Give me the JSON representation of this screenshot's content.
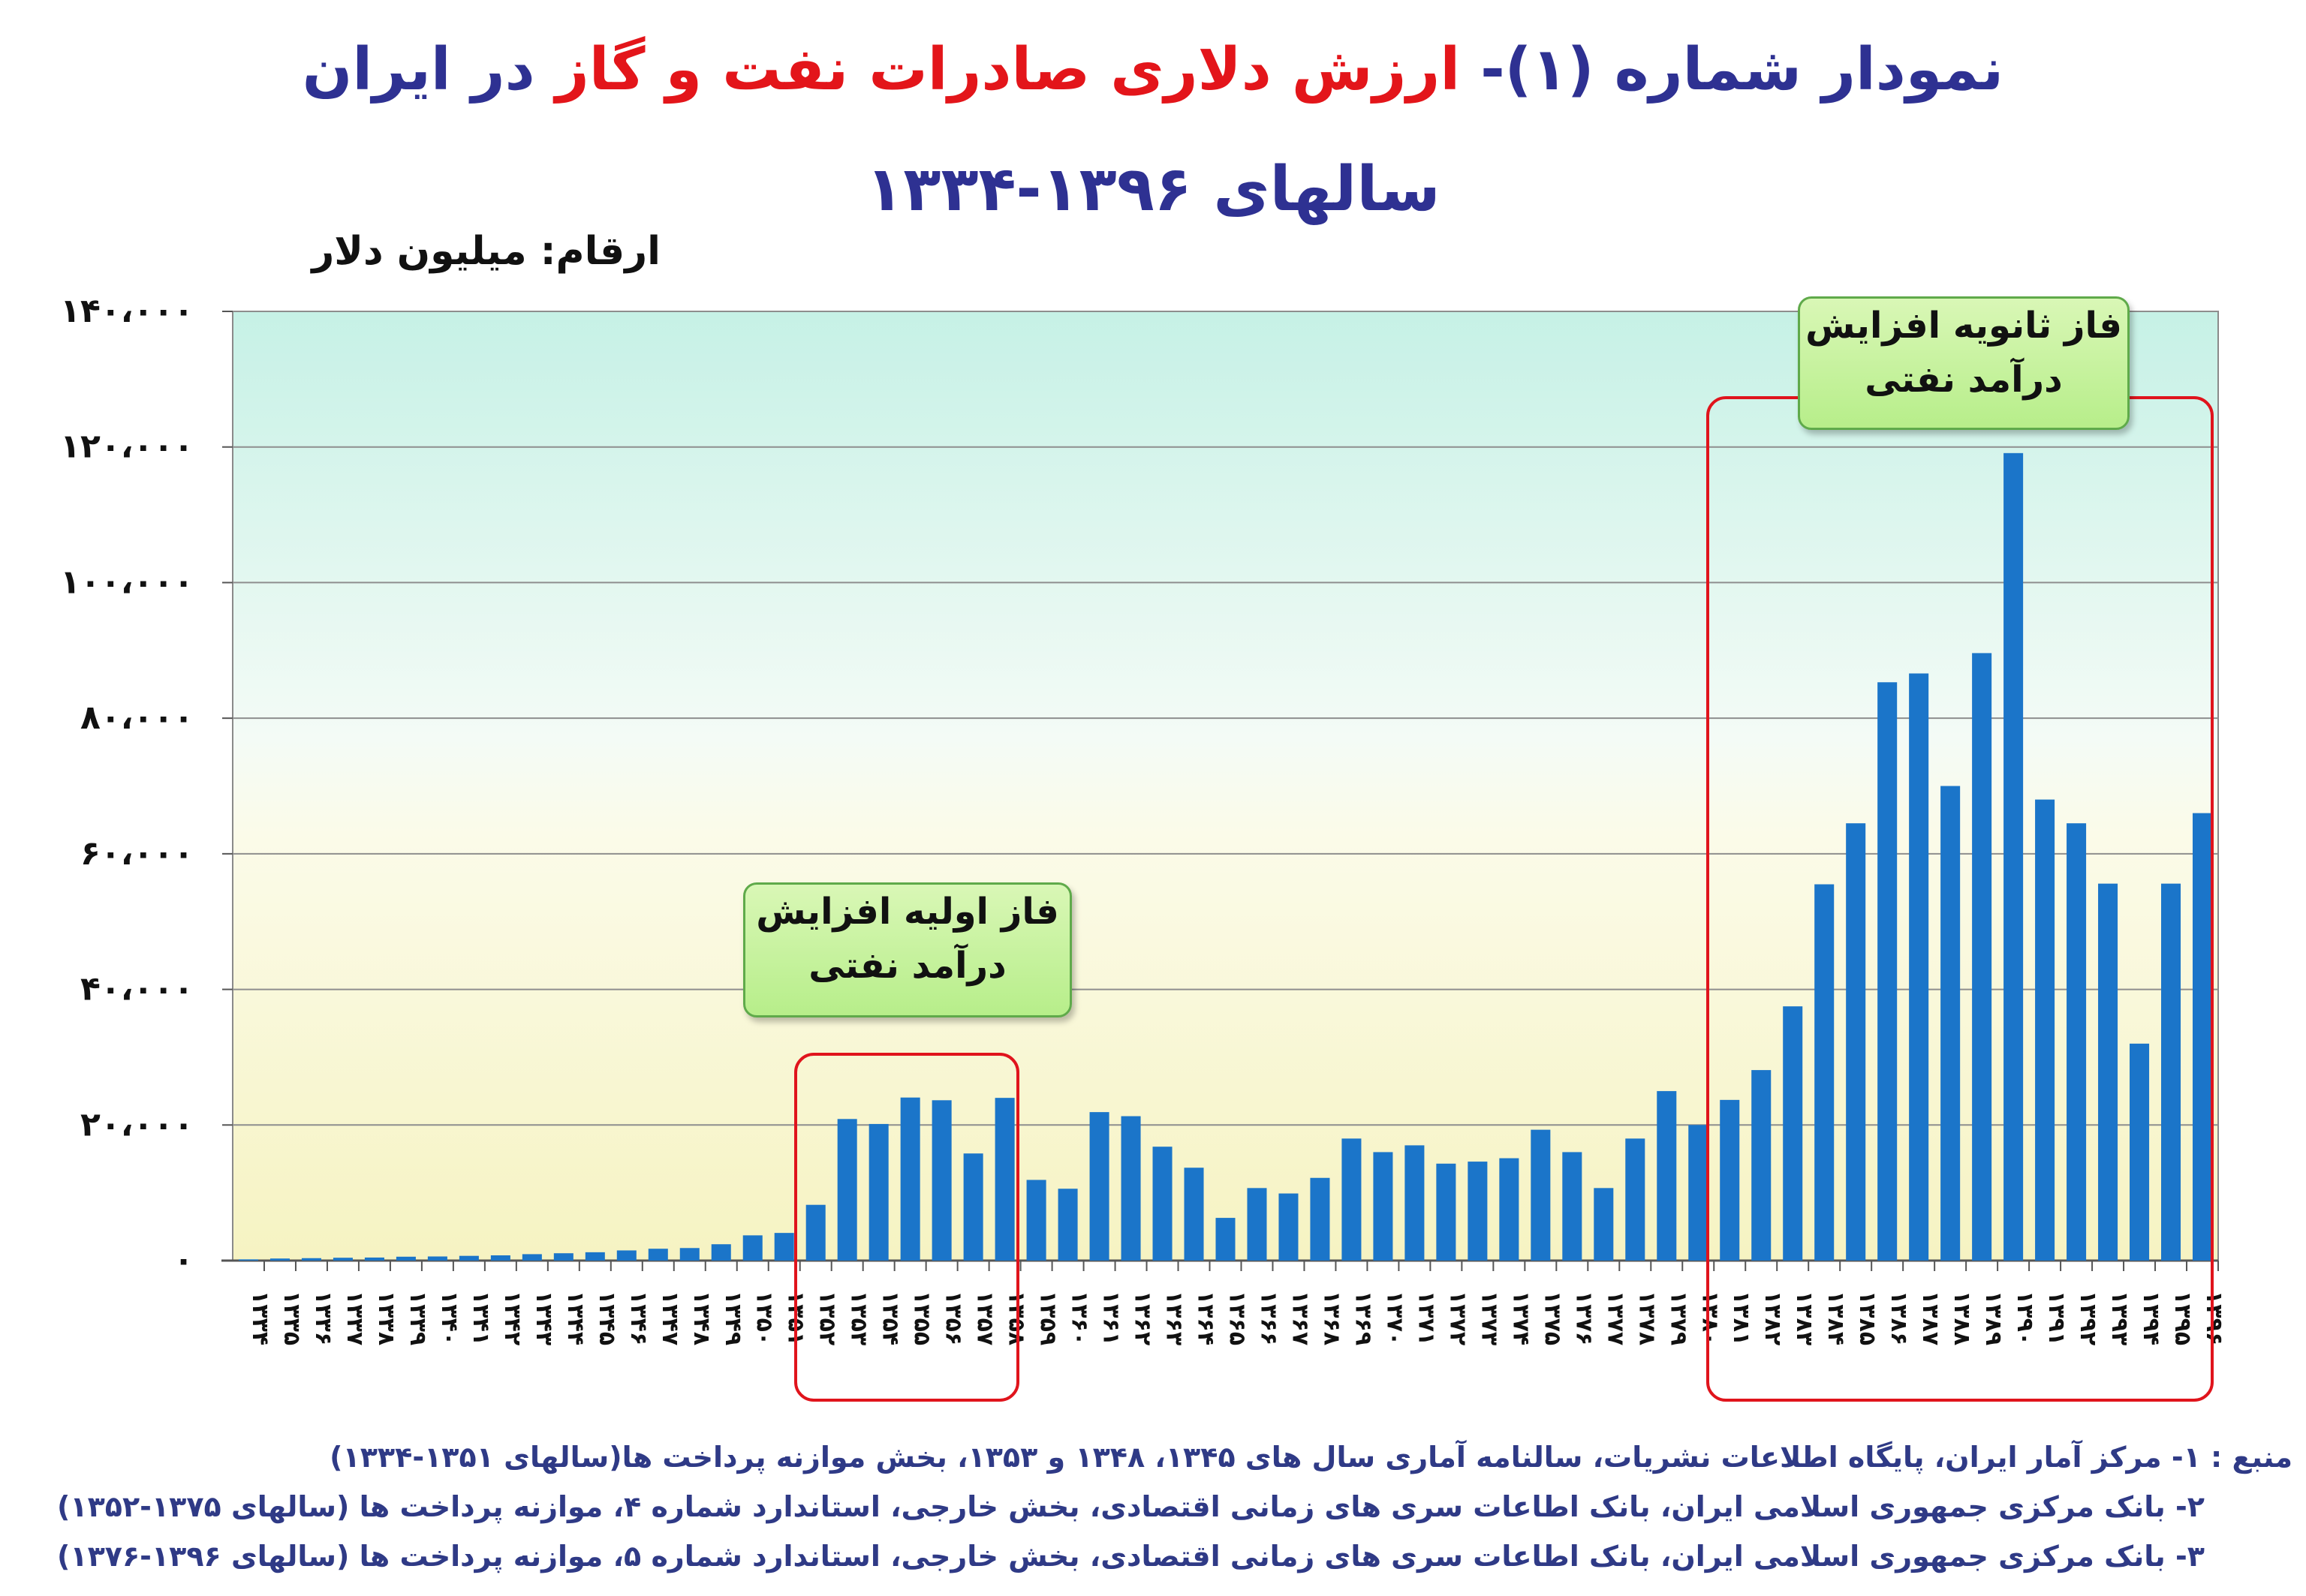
{
  "title": {
    "part1": "نمودار شماره (۱)- ",
    "part2": "ارزش دلاری صادرات نفت و گاز",
    "part3": " در ایران",
    "line2": "سالهای ۱۳۹۶-۱۳۳۴"
  },
  "unit_label": "ارقام: میلیون دلار",
  "phases": {
    "first": {
      "line1": "فاز اولیه افزایش",
      "line2": "درآمد نفتی"
    },
    "second": {
      "line1": "فاز ثانویه افزایش",
      "line2": "درآمد نفتی"
    }
  },
  "sources": {
    "line1": "منبع : ۱- مرکز آمار ایران، پایگاه اطلاعات نشریات، سالنامه آماری سال های ۱۳۴۵، ۱۳۴۸ و ۱۳۵۳، بخش موازنه پرداخت ها(سالهای ۱۳۵۱-۱۳۳۴)",
    "line2": "۲- بانک مرکزی جمهوری اسلامی ایران، بانک اطاعات سری های زمانی اقتصادی، بخش خارجی، استاندارد شماره ۴، موازنه پرداخت ها (سالهای ۱۳۷۵-۱۳۵۲)",
    "line3": "۳- بانک مرکزی جمهوری اسلامی ایران، بانک اطاعات سری های زمانی اقتصادی، بخش خارجی، استاندارد شماره ۵، موازنه پرداخت ها (سالهای ۱۳۹۶-۱۳۷۶)"
  },
  "chart_data": {
    "type": "bar",
    "ylim": [
      0,
      140000
    ],
    "ytick_labels": [
      "۰",
      "۲۰،۰۰۰",
      "۴۰،۰۰۰",
      "۶۰،۰۰۰",
      "۸۰،۰۰۰",
      "۱۰۰،۰۰۰",
      "۱۲۰،۰۰۰",
      "۱۴۰،۰۰۰"
    ],
    "yticks": [
      0,
      20000,
      40000,
      60000,
      80000,
      100000,
      120000,
      140000
    ],
    "grid": true,
    "bar_color": "#1b75c9",
    "categories": [
      "۱۳۳۴",
      "۱۳۳۵",
      "۱۳۳۶",
      "۱۳۳۷",
      "۱۳۳۸",
      "۱۳۳۹",
      "۱۳۴۰",
      "۱۳۴۱",
      "۱۳۴۲",
      "۱۳۴۳",
      "۱۳۴۴",
      "۱۳۴۵",
      "۱۳۴۶",
      "۱۳۴۷",
      "۱۳۴۸",
      "۱۳۴۹",
      "۱۳۵۰",
      "۱۳۵۱",
      "۱۳۵۲",
      "۱۳۵۳",
      "۱۳۵۴",
      "۱۳۵۵",
      "۱۳۵۶",
      "۱۳۵۷",
      "۱۳۵۸",
      "۱۳۵۹",
      "۱۳۶۰",
      "۱۳۶۱",
      "۱۳۶۲",
      "۱۳۶۳",
      "۱۳۶۴",
      "۱۳۶۵",
      "۱۳۶۶",
      "۱۳۶۷",
      "۱۳۶۸",
      "۱۳۶۹",
      "۱۳۷۰",
      "۱۳۷۱",
      "۱۳۷۲",
      "۱۳۷۳",
      "۱۳۷۴",
      "۱۳۷۵",
      "۱۳۷۶",
      "۱۳۷۷",
      "۱۳۷۸",
      "۱۳۷۹",
      "۱۳۸۰",
      "۱۳۸۱",
      "۱۳۸۲",
      "۱۳۸۳",
      "۱۳۸۴",
      "۱۳۸۵",
      "۱۳۸۶",
      "۱۳۸۷",
      "۱۳۸۸",
      "۱۳۸۹",
      "۱۳۹۰",
      "۱۳۹۱",
      "۱۳۹۲",
      "۱۳۹۳",
      "۱۳۹۴",
      "۱۳۹۵",
      "۱۳۹۶"
    ],
    "values": [
      181,
      307,
      360,
      420,
      451,
      573,
      609,
      700,
      775,
      948,
      1084,
      1231,
      1500,
      1750,
      1853,
      2412,
      3723,
      4080,
      8224,
      20883,
      20150,
      24050,
      23650,
      15800,
      24000,
      11900,
      10600,
      21900,
      21300,
      16800,
      13700,
      6300,
      10700,
      9900,
      12200,
      18000,
      16000,
      17000,
      14300,
      14600,
      15100,
      19300,
      16000,
      10700,
      18000,
      25000,
      20000,
      23700,
      28100,
      37500,
      55500,
      64500,
      85300,
      86600,
      70000,
      89600,
      119100,
      68000,
      64500,
      55600,
      32000,
      55600,
      66000
    ]
  }
}
